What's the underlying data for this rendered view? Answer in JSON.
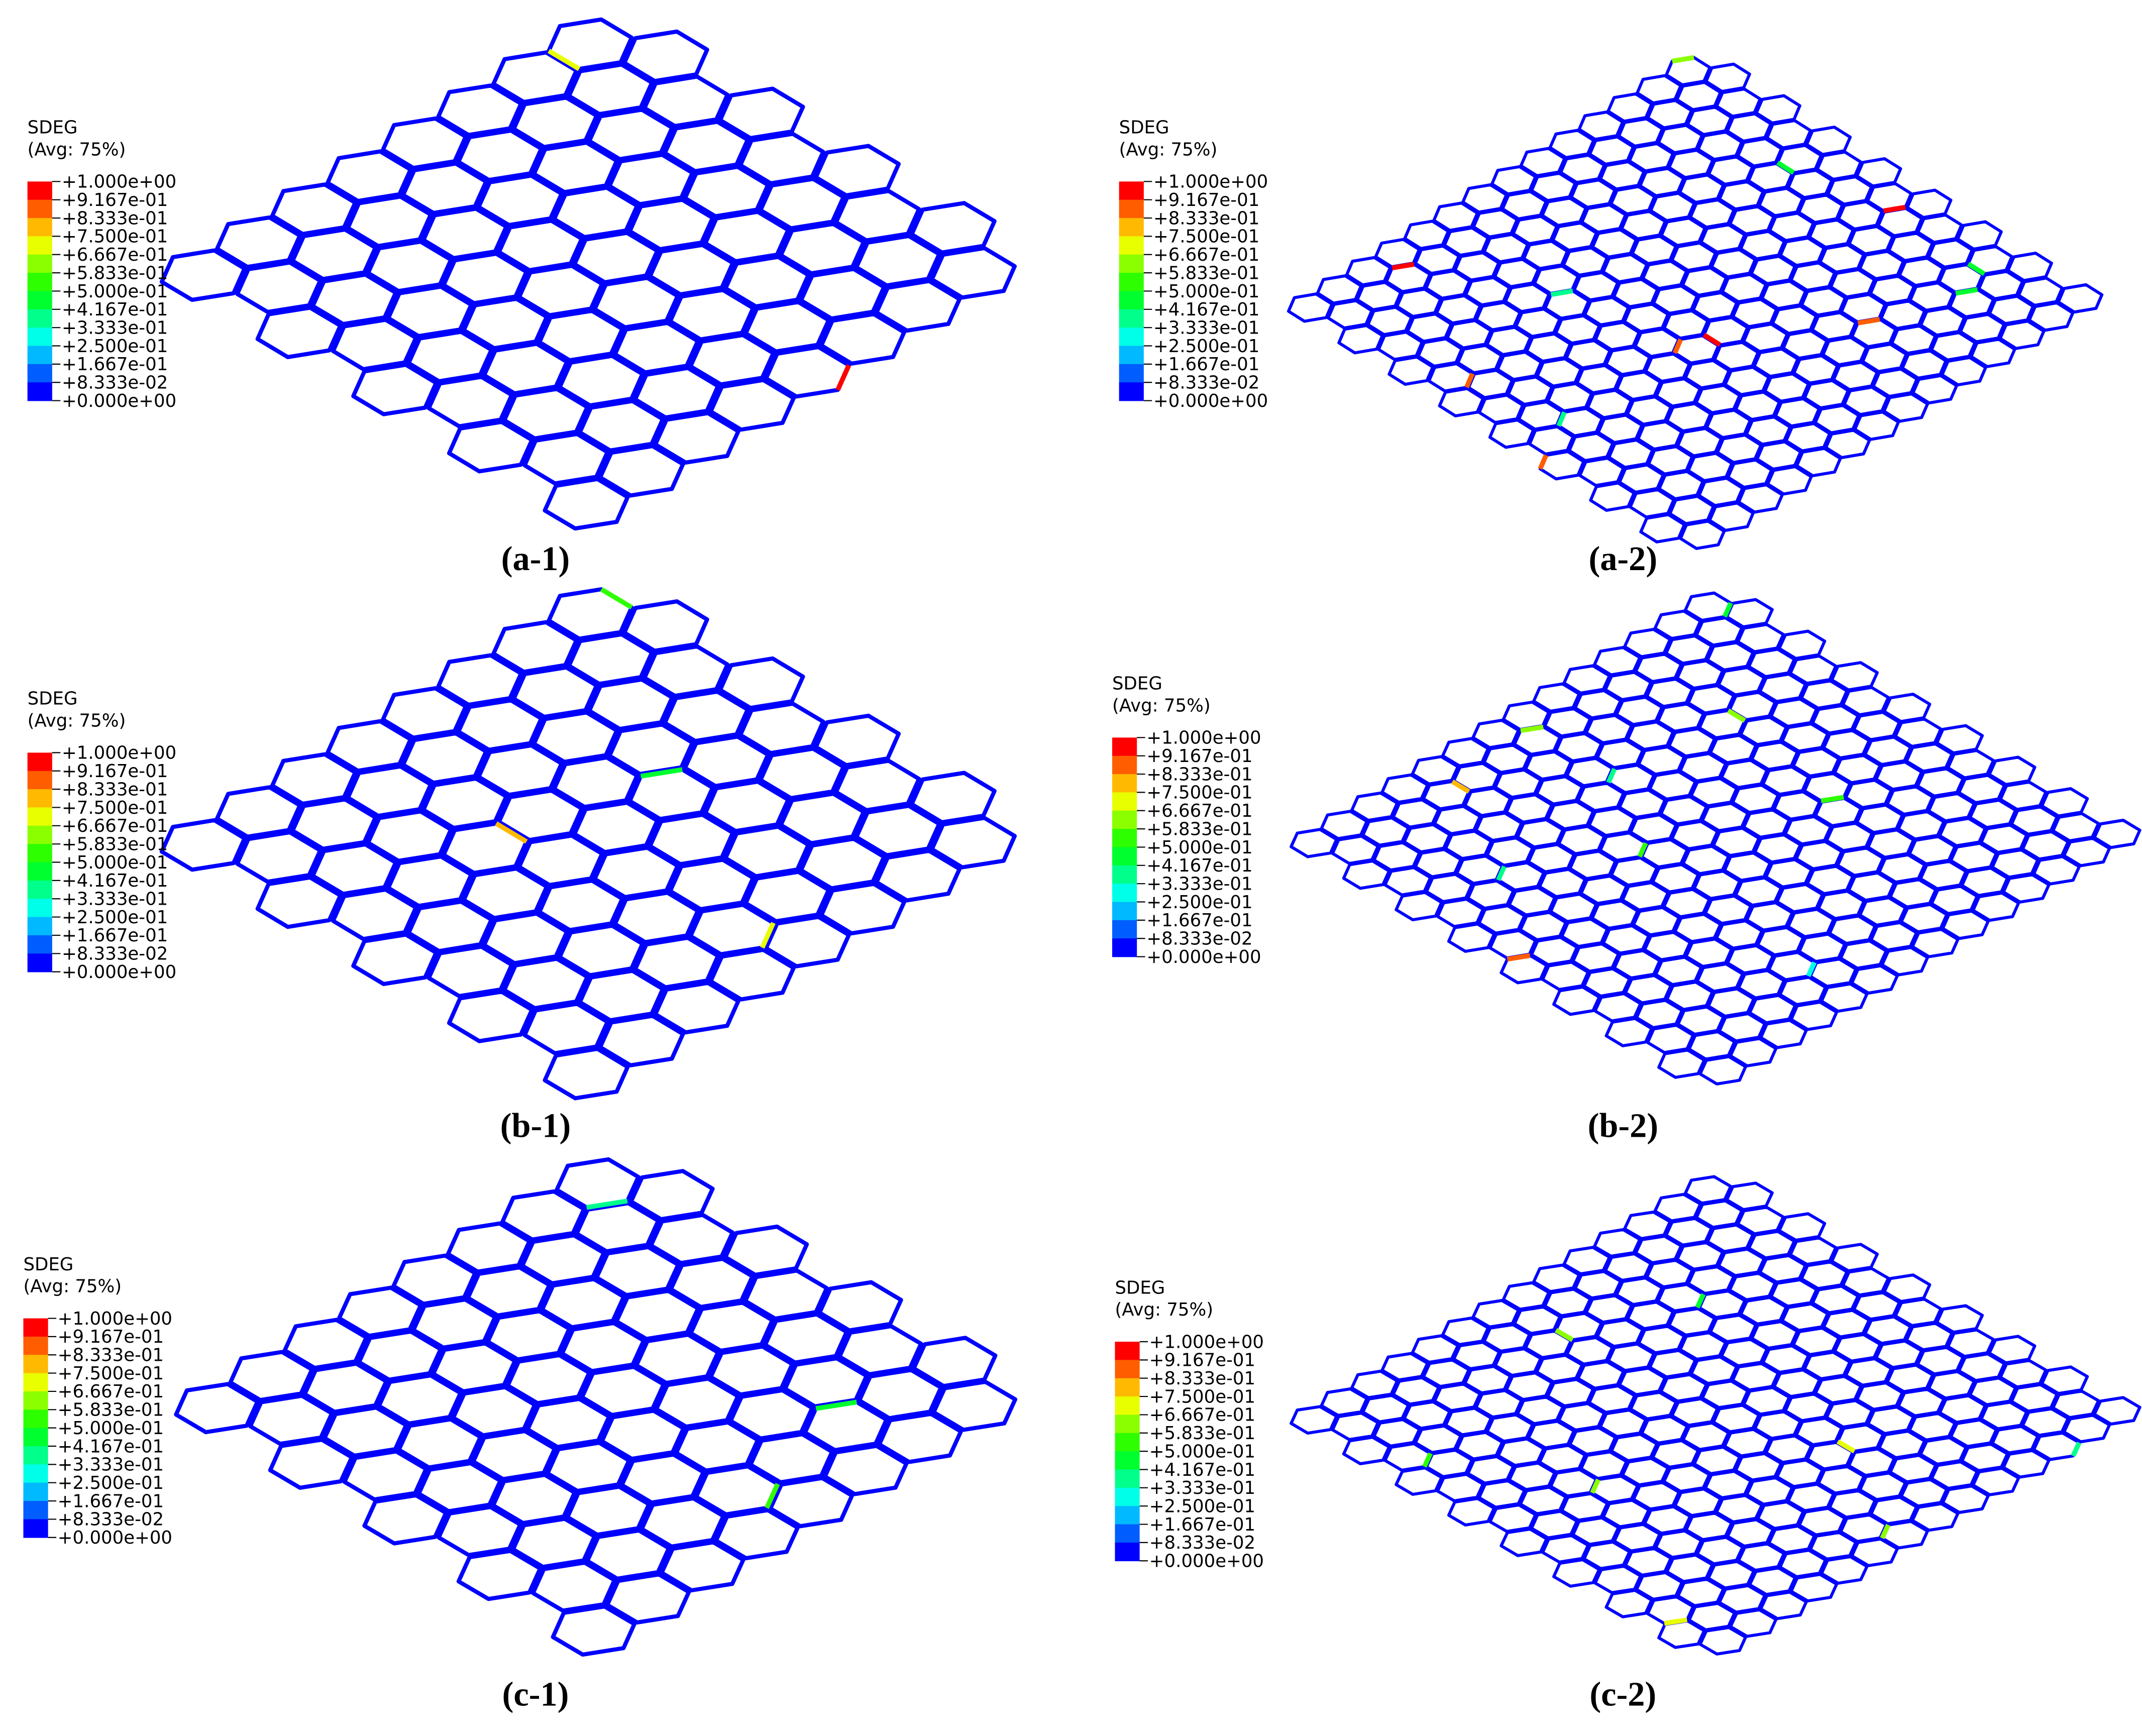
{
  "legend": {
    "title": "SDEG",
    "subtitle": "(Avg: 75%)",
    "labels": [
      "+1.000e+00",
      "+9.167e-01",
      "+8.333e-01",
      "+7.500e-01",
      "+6.667e-01",
      "+5.833e-01",
      "+5.000e-01",
      "+4.167e-01",
      "+3.333e-01",
      "+2.500e-01",
      "+1.667e-01",
      "+8.333e-02",
      "+0.000e+00"
    ],
    "colors": [
      "#ff0000",
      "#ff5d00",
      "#ffb900",
      "#e8ff00",
      "#8bff00",
      "#2eff00",
      "#00ff2e",
      "#00ff8b",
      "#00ffe8",
      "#00b9ff",
      "#005dff",
      "#0000ff"
    ]
  },
  "panels": [
    {
      "caption": "(a-1)"
    },
    {
      "caption": "(a-2)"
    },
    {
      "caption": "(b-1)"
    },
    {
      "caption": "(b-2)"
    },
    {
      "caption": "(c-1)"
    },
    {
      "caption": "(c-2)"
    }
  ]
}
